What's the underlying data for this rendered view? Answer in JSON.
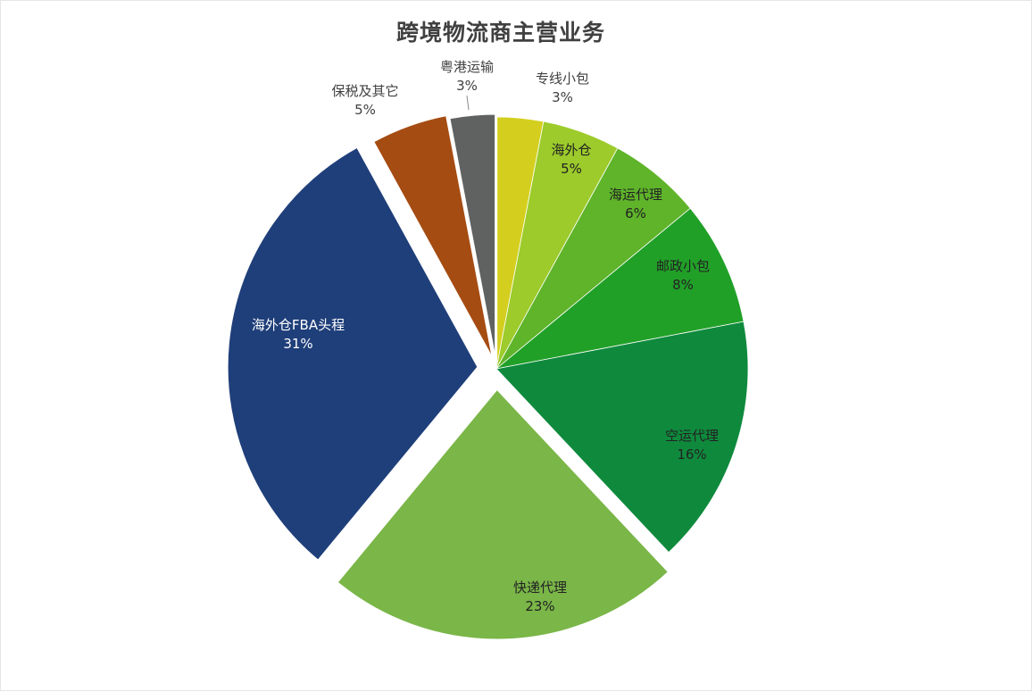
{
  "chart_data": {
    "type": "pie",
    "title": "跨境物流商主营业务",
    "start_angle_deg": 0,
    "direction": "clockwise",
    "slices": [
      {
        "label": "专线小包",
        "value": 3,
        "display": "3%",
        "color": "#d4cf1e",
        "label_pos": "outside",
        "explode": 0
      },
      {
        "label": "海外仓",
        "value": 5,
        "display": "5%",
        "color": "#9ccb2b",
        "label_pos": "inside",
        "explode": 0
      },
      {
        "label": "海运代理",
        "value": 6,
        "display": "6%",
        "color": "#5fb42a",
        "label_pos": "inside",
        "explode": 0
      },
      {
        "label": "邮政小包",
        "value": 8,
        "display": "8%",
        "color": "#21a028",
        "label_pos": "inside",
        "explode": 0
      },
      {
        "label": "空运代理",
        "value": 16,
        "display": "16%",
        "color": "#0f8a3d",
        "label_pos": "inside",
        "explode": 0
      },
      {
        "label": "快递代理",
        "value": 23,
        "display": "23%",
        "color": "#7ab648",
        "label_pos": "inside",
        "explode": 22
      },
      {
        "label": "海外仓FBA头程",
        "value": 31,
        "display": "31%",
        "color": "#1f3f7a",
        "label_pos": "inside",
        "explode": 20
      },
      {
        "label": "保税及其它",
        "value": 5,
        "display": "5%",
        "color": "#a54c12",
        "label_pos": "outside",
        "explode": 8
      },
      {
        "label": "粤港运输",
        "value": 3,
        "display": "3%",
        "color": "#606262",
        "label_pos": "outside",
        "explode": 4
      }
    ],
    "legend": "none"
  }
}
